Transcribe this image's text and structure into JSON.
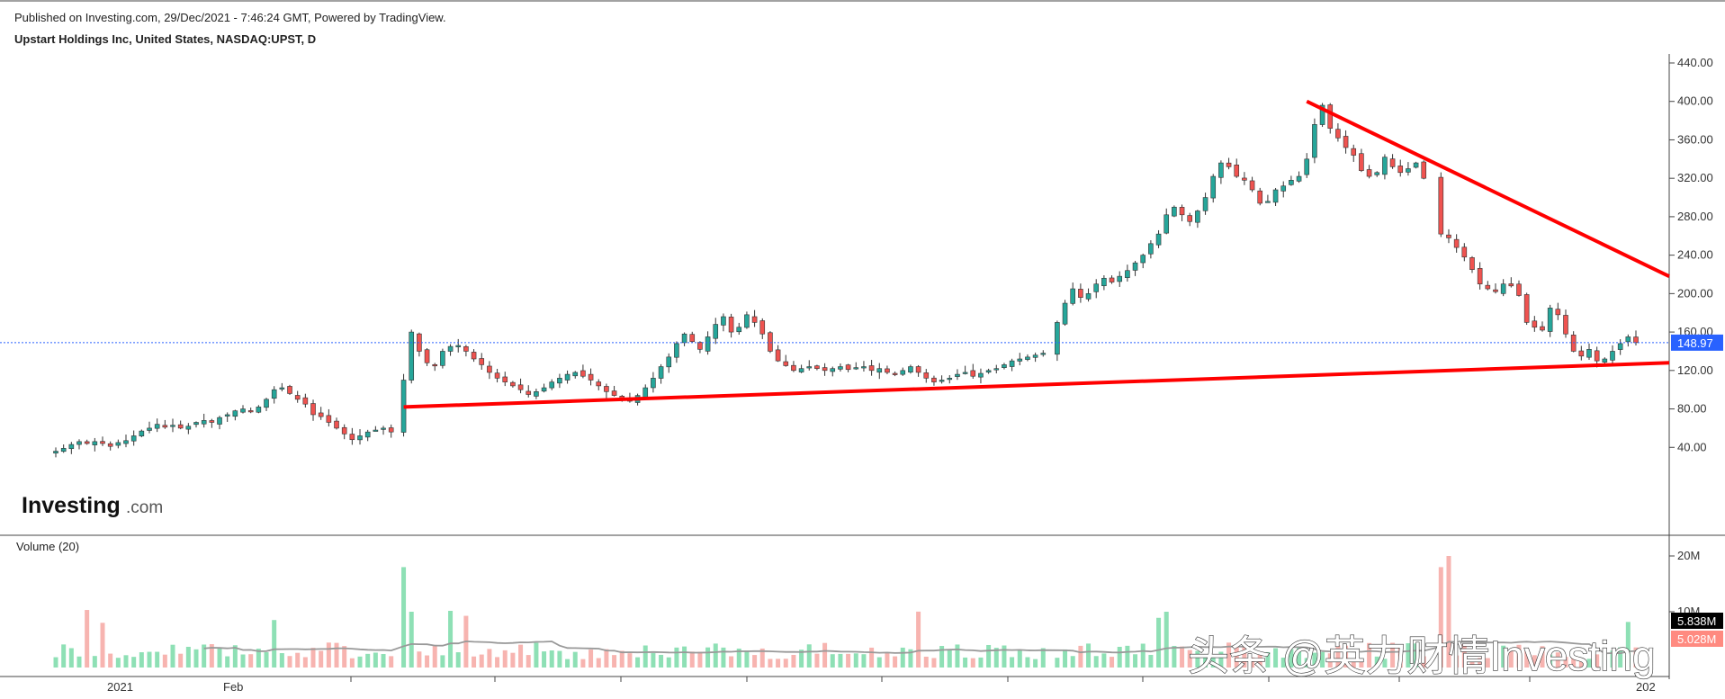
{
  "header": {
    "published": "Published on Investing.com, 29/Dec/2021 - 7:46:24 GMT, Powered by TradingView.",
    "instrument": "Upstart Holdings Inc, United States, NASDAQ:UPST, D"
  },
  "logo": {
    "brand": "Investing",
    "suffix": ".com"
  },
  "volume_panel": {
    "label": "Volume (20)"
  },
  "watermark": "头条 @英力财情Investing",
  "colors": {
    "up": "#26a69a",
    "down": "#ef5350",
    "trend": "#ff0000",
    "price_badge": "#2962ff",
    "vol_ma": "#999999"
  },
  "chart_data": {
    "type": "candlestick",
    "price_axis": {
      "ticks": [
        "440.00",
        "400.00",
        "360.00",
        "320.00",
        "280.00",
        "240.00",
        "200.00",
        "160.00",
        "120.00",
        "80.00",
        "40.00"
      ],
      "range": [
        0,
        455
      ]
    },
    "last_price": "148.97",
    "volume_axis": {
      "ticks": [
        "20M",
        "10M"
      ],
      "range": [
        0,
        22
      ]
    },
    "volume_ma_value": "5.838M",
    "last_volume": "5.028M",
    "x_axis": {
      "labels": [
        "2021",
        "Feb",
        "202"
      ]
    },
    "price_series": [
      36,
      39,
      43,
      46,
      44,
      46,
      44,
      41,
      45,
      47,
      52,
      57,
      60,
      64,
      61,
      63,
      60,
      62,
      66,
      68,
      66,
      71,
      74,
      78,
      80,
      78,
      82,
      90,
      100,
      102,
      96,
      90,
      85,
      74,
      72,
      66,
      60,
      54,
      48,
      52,
      56,
      58,
      60,
      56,
      110,
      160,
      140,
      128,
      125,
      140,
      145,
      146,
      140,
      132,
      126,
      118,
      112,
      108,
      104,
      100,
      95,
      98,
      102,
      108,
      112,
      116,
      118,
      114,
      110,
      104,
      98,
      94,
      90,
      88,
      94,
      102,
      112,
      124,
      134,
      148,
      158,
      150,
      142,
      155,
      168,
      176,
      160,
      165,
      178,
      170,
      158,
      140,
      130,
      125,
      120,
      122,
      124,
      122,
      120,
      122,
      124,
      121,
      123,
      124,
      120,
      122,
      118,
      116,
      120,
      124,
      118,
      112,
      108,
      110,
      112,
      116,
      118,
      114,
      117,
      120,
      122,
      126,
      130,
      132,
      134,
      136,
      138,
      170,
      190,
      205,
      196,
      200,
      210,
      216,
      212,
      218,
      224,
      232,
      240,
      252,
      262,
      282,
      290,
      282,
      275,
      286,
      300,
      322,
      336,
      332,
      322,
      318,
      308,
      294,
      296,
      308,
      312,
      318,
      322,
      340,
      376,
      396,
      372,
      362,
      352,
      344,
      328,
      322,
      326,
      342,
      332,
      326,
      330,
      336,
      320,
      262,
      258,
      248,
      238,
      225,
      210,
      205,
      202,
      210,
      208,
      198,
      170,
      165,
      162,
      185,
      178,
      158,
      140,
      135,
      142,
      130,
      132,
      140,
      148,
      155,
      148.97
    ],
    "trend_lines": [
      {
        "from": {
          "date": "2021-03-19",
          "price": 82
        },
        "to": {
          "date": "2021-12-29",
          "price": 128
        }
      },
      {
        "from": {
          "date": "2021-10-15",
          "price": 400
        },
        "to": {
          "date": "2021-12-29",
          "price": 218
        }
      }
    ],
    "volume_ma_note": "Volume (20)"
  }
}
